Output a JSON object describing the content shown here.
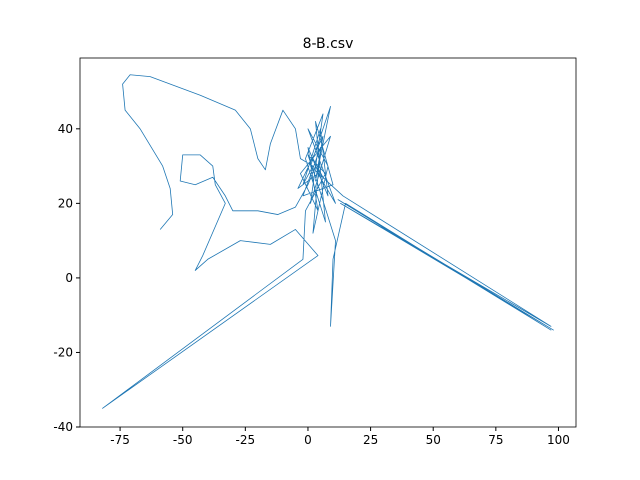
{
  "chart_data": {
    "type": "line",
    "title": "8-B.csv",
    "x": [
      -59,
      -54,
      -55,
      -58,
      -67,
      -73,
      -74,
      -71,
      -63,
      -43,
      -29,
      -23,
      -20,
      -17,
      -15,
      -10,
      -5,
      -3,
      2,
      -2,
      5,
      8,
      0,
      4,
      -3,
      9,
      1,
      6,
      -1,
      7,
      3,
      10,
      -2,
      5,
      2,
      8,
      0,
      11,
      4,
      -4,
      6,
      3,
      9,
      1,
      14,
      97,
      13,
      98,
      12,
      97,
      15,
      10,
      9,
      11,
      4,
      0,
      7,
      -1,
      -2,
      -82,
      4,
      -5,
      -15,
      -27,
      -40,
      -45,
      -42,
      -33,
      -37,
      -38,
      -43,
      -50,
      -51,
      -45,
      -38,
      -33,
      -30,
      -20,
      -12,
      -5,
      0,
      3,
      6,
      2
    ],
    "series": [
      {
        "color": "#1f77b4",
        "values": [
          13,
          17,
          24,
          30,
          40,
          45,
          52,
          54.5,
          54,
          49,
          45,
          40,
          32,
          29,
          36,
          45,
          40,
          32,
          30,
          25,
          40,
          22,
          35,
          18,
          28,
          38,
          20,
          44,
          32,
          15,
          42,
          25,
          22,
          35,
          12,
          30,
          40,
          20,
          28,
          24,
          38,
          26,
          46,
          30,
          22,
          -13,
          20,
          -14,
          21,
          -14,
          20,
          5,
          -13,
          10,
          25,
          33,
          28,
          18,
          5,
          -35,
          6,
          13,
          9,
          10,
          5,
          2,
          6,
          20,
          25,
          30,
          33,
          33,
          26,
          25,
          27,
          22,
          18,
          18,
          17,
          19,
          25,
          30,
          27,
          32
        ]
      }
    ],
    "xlim": [
      -91,
      107
    ],
    "xticks": [
      -75,
      -50,
      -25,
      0,
      25,
      50,
      75,
      100
    ],
    "ylim": [
      -40,
      59
    ],
    "yticks": [
      -40,
      -20,
      0,
      20,
      40
    ]
  }
}
